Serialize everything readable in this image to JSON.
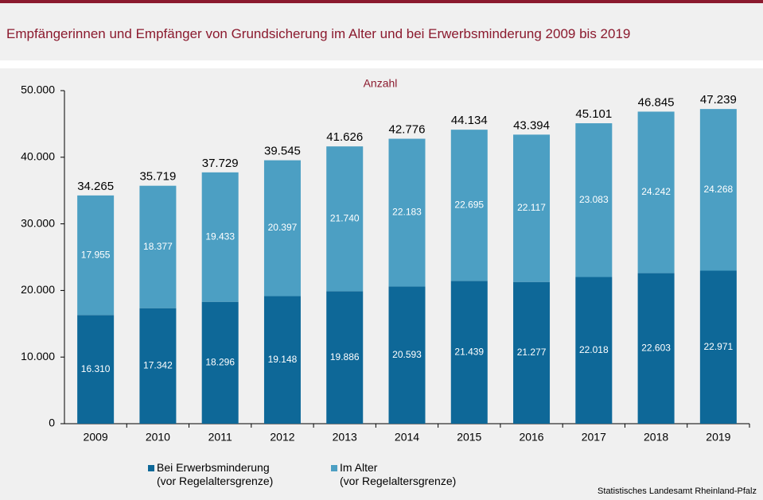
{
  "chart_data": {
    "type": "stacked-bar",
    "title": "Empfängerinnen und Empfänger von Grundsicherung im Alter und bei Erwerbsminderung 2009 bis 2019",
    "subtitle": "Anzahl",
    "source": "Statistisches Landesamt Rheinland-Pfalz",
    "categories": [
      "2009",
      "2010",
      "2011",
      "2012",
      "2013",
      "2014",
      "2015",
      "2016",
      "2017",
      "2018",
      "2019"
    ],
    "series": [
      {
        "name": "Bei Erwerbsminderung\n(vor Regelaltersgrenze)",
        "color": "#0e6898",
        "values": [
          16310,
          17342,
          18296,
          19148,
          19886,
          20593,
          21439,
          21277,
          22018,
          22603,
          22971
        ],
        "value_labels": [
          "16.310",
          "17.342",
          "18.296",
          "19.148",
          "19.886",
          "20.593",
          "21.439",
          "21.277",
          "22.018",
          "22.603",
          "22.971"
        ]
      },
      {
        "name": "Im Alter\n(vor Regelaltersgrenze)",
        "color": "#4c9fc3",
        "values": [
          17955,
          18377,
          19433,
          20397,
          21740,
          22183,
          22695,
          22117,
          23083,
          24242,
          24268
        ],
        "value_labels": [
          "17.955",
          "18.377",
          "19.433",
          "20.397",
          "21.740",
          "22.183",
          "22.695",
          "22.117",
          "23.083",
          "24.242",
          "24.268"
        ]
      }
    ],
    "totals": {
      "values": [
        34265,
        35719,
        37729,
        39545,
        41626,
        42776,
        44134,
        43394,
        45101,
        46845,
        47239
      ],
      "value_labels": [
        "34.265",
        "35.719",
        "37.729",
        "39.545",
        "41.626",
        "42.776",
        "44.134",
        "43.394",
        "45.101",
        "46.845",
        "47.239"
      ]
    },
    "ylim": [
      0,
      50000
    ],
    "yticks": [
      0,
      {
        "value": 10000,
        "label": "10.000"
      },
      {
        "value": 20000,
        "label": "20.000"
      },
      {
        "value": 30000,
        "label": "30.000"
      },
      {
        "value": 40000,
        "label": "40.000"
      },
      {
        "value": 50000,
        "label": "50.000"
      }
    ]
  }
}
